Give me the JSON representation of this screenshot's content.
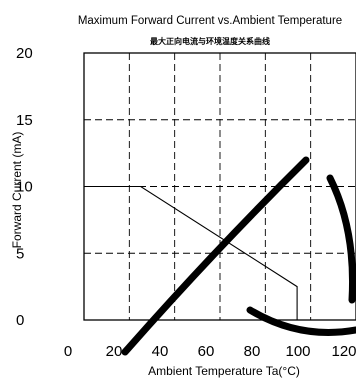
{
  "chart_data": {
    "type": "line",
    "title": "Maximum Forward Current vs.Ambient Temperature",
    "subtitle": "最大正向电流与环境温度关系曲线",
    "xlabel": "Ambient Temperature Ta(°C)",
    "ylabel": "Forward Current (mA)",
    "xlim": [
      0,
      120
    ],
    "ylim": [
      0,
      20
    ],
    "xticks": [
      "0",
      "20",
      "40",
      "60",
      "80",
      "100",
      "120"
    ],
    "yticks": [
      "0",
      "5",
      "10",
      "15",
      "20"
    ],
    "x_tick_values": [
      0,
      20,
      40,
      60,
      80,
      100,
      120
    ],
    "y_tick_values": [
      0,
      5,
      10,
      15,
      20
    ],
    "grid": true,
    "series": [
      {
        "x": [
          0,
          25,
          94,
          94
        ],
        "y": [
          10,
          10,
          2.5,
          0
        ]
      }
    ]
  }
}
